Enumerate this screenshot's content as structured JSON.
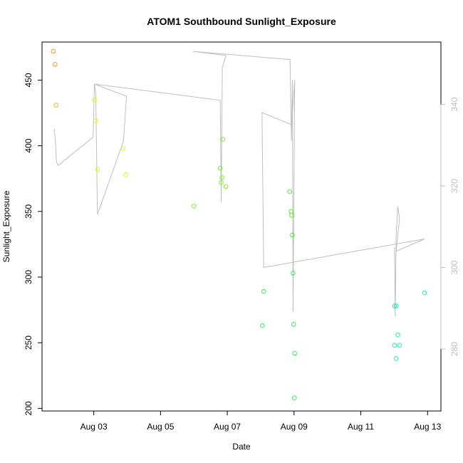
{
  "chart_data": {
    "type": "scatter",
    "title": "ATOM1 Southbound Sunlight_Exposure",
    "xlabel": "Date",
    "ylabel": "Sunlight_Exposure",
    "xlim": [
      1.45,
      13.4
    ],
    "ylim": [
      198,
      479
    ],
    "y2lim": [
      264.8,
      355.3
    ],
    "x_ticks": [
      {
        "value": 3,
        "label": "Aug 03"
      },
      {
        "value": 5,
        "label": "Aug 05"
      },
      {
        "value": 7,
        "label": "Aug 07"
      },
      {
        "value": 9,
        "label": "Aug 09"
      },
      {
        "value": 11,
        "label": "Aug 11"
      },
      {
        "value": 13,
        "label": "Aug 13"
      }
    ],
    "y_ticks": [
      200,
      250,
      300,
      350,
      400,
      450
    ],
    "y2_ticks": [
      280,
      300,
      320,
      340
    ],
    "grid": false,
    "line_color": "#bebebe",
    "axis2_color": "#bebebe",
    "points": [
      {
        "x": 1.79,
        "y": 472,
        "color": "#f7951c"
      },
      {
        "x": 1.84,
        "y": 462,
        "color": "#f7951c"
      },
      {
        "x": 1.87,
        "y": 431,
        "color": "#f8b21a"
      },
      {
        "x": 3.02,
        "y": 435,
        "color": "#e5f21a"
      },
      {
        "x": 3.06,
        "y": 419,
        "color": "#e5f21a"
      },
      {
        "x": 3.11,
        "y": 382,
        "color": "#e5f21a"
      },
      {
        "x": 3.88,
        "y": 398,
        "color": "#e5f21a"
      },
      {
        "x": 3.96,
        "y": 378,
        "color": "#e5f21a"
      },
      {
        "x": 6.0,
        "y": 354,
        "color": "#7eee2a"
      },
      {
        "x": 6.79,
        "y": 383,
        "color": "#7eee2a"
      },
      {
        "x": 6.82,
        "y": 372,
        "color": "#7eee2a"
      },
      {
        "x": 6.84,
        "y": 376,
        "color": "#7eee2a"
      },
      {
        "x": 6.87,
        "y": 405,
        "color": "#7eee2a"
      },
      {
        "x": 6.96,
        "y": 369,
        "color": "#7eee2a"
      },
      {
        "x": 8.05,
        "y": 263,
        "color": "#3ae85a"
      },
      {
        "x": 8.09,
        "y": 289,
        "color": "#3ae85a"
      },
      {
        "x": 8.87,
        "y": 365,
        "color": "#5ae83a"
      },
      {
        "x": 8.91,
        "y": 350,
        "color": "#5ae83a"
      },
      {
        "x": 8.93,
        "y": 347,
        "color": "#5ae83a"
      },
      {
        "x": 8.95,
        "y": 332,
        "color": "#5ae83a"
      },
      {
        "x": 8.97,
        "y": 303,
        "color": "#3ae85a"
      },
      {
        "x": 8.99,
        "y": 264,
        "color": "#3ae85a"
      },
      {
        "x": 9.02,
        "y": 242,
        "color": "#3ae85a"
      },
      {
        "x": 9.01,
        "y": 208,
        "color": "#3ae85a"
      },
      {
        "x": 12.01,
        "y": 278,
        "color": "#28e8b4"
      },
      {
        "x": 12.06,
        "y": 278,
        "color": "#28e8b4"
      },
      {
        "x": 12.01,
        "y": 248,
        "color": "#28e8b4"
      },
      {
        "x": 12.06,
        "y": 238,
        "color": "#28e8b4"
      },
      {
        "x": 12.11,
        "y": 256,
        "color": "#28e8b4"
      },
      {
        "x": 12.16,
        "y": 248,
        "color": "#28e8b4"
      },
      {
        "x": 12.91,
        "y": 288,
        "color": "#28e8b4"
      }
    ],
    "line": [
      [
        1.82,
        334
      ],
      [
        1.86,
        330
      ],
      [
        1.88,
        326
      ],
      [
        1.93,
        325
      ],
      [
        2.98,
        332
      ],
      [
        3.02,
        345
      ],
      [
        3.06,
        343
      ],
      [
        3.11,
        313
      ],
      [
        3.89,
        331
      ],
      [
        3.98,
        342
      ],
      [
        3.02,
        345
      ],
      [
        6.79,
        341
      ],
      [
        6.82,
        316
      ],
      [
        6.85,
        349
      ],
      [
        6.96,
        352
      ],
      [
        5.98,
        353
      ],
      [
        8.88,
        351
      ],
      [
        8.92,
        331
      ],
      [
        8.95,
        346
      ],
      [
        8.97,
        289
      ],
      [
        9.02,
        346
      ],
      [
        8.93,
        335
      ],
      [
        8.04,
        338
      ],
      [
        8.09,
        300
      ],
      [
        12.91,
        307
      ],
      [
        12.06,
        304
      ],
      [
        12.16,
        312
      ],
      [
        12.11,
        315
      ],
      [
        12.06,
        308
      ],
      [
        12.03,
        288
      ],
      [
        12.01,
        305
      ]
    ]
  }
}
